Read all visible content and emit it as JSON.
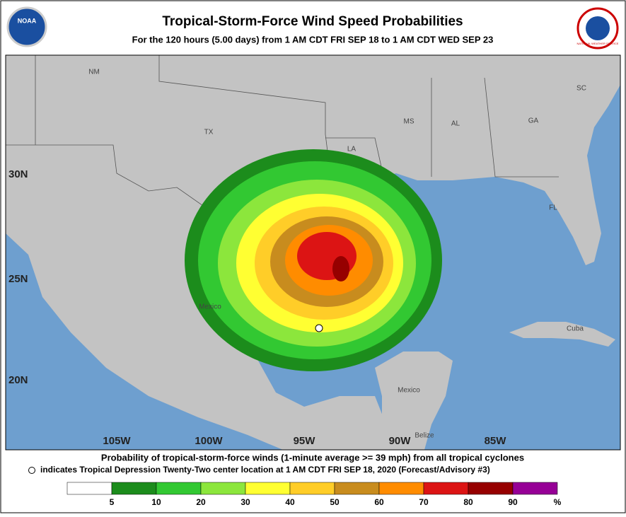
{
  "header": {
    "title": "Tropical-Storm-Force Wind Speed Probabilities",
    "subtitle": "For the 120 hours (5.00 days) from 1 AM CDT FRI SEP 18 to 1 AM CDT WED SEP 23",
    "left_logo": "NOAA",
    "right_logo": "NATIONAL WEATHER SERVICE"
  },
  "map": {
    "lat_labels": [
      "30N",
      "25N",
      "20N"
    ],
    "lon_labels": [
      "105W",
      "100W",
      "95W",
      "90W",
      "85W"
    ],
    "place_labels": [
      "NM",
      "TX",
      "LA",
      "MS",
      "AL",
      "GA",
      "SC",
      "FL",
      "Mexico",
      "Mexico",
      "Belize",
      "Cuba"
    ]
  },
  "footer": {
    "line1": "Probability of tropical-storm-force winds (1-minute average >= 39 mph) from all tropical cyclones",
    "line2": "indicates Tropical Depression Twenty-Two center location at 1 AM CDT FRI SEP 18, 2020 (Forecast/Advisory #3)"
  },
  "legend": {
    "ticks": [
      5,
      10,
      20,
      30,
      40,
      50,
      60,
      70,
      80,
      90
    ],
    "unit": "%",
    "colors": [
      "#ffffff",
      "#1c8c1c",
      "#32c832",
      "#8ce63c",
      "#ffff32",
      "#ffcd28",
      "#c88c1e",
      "#ff8c00",
      "#dc1414",
      "#960000",
      "#960096"
    ]
  }
}
